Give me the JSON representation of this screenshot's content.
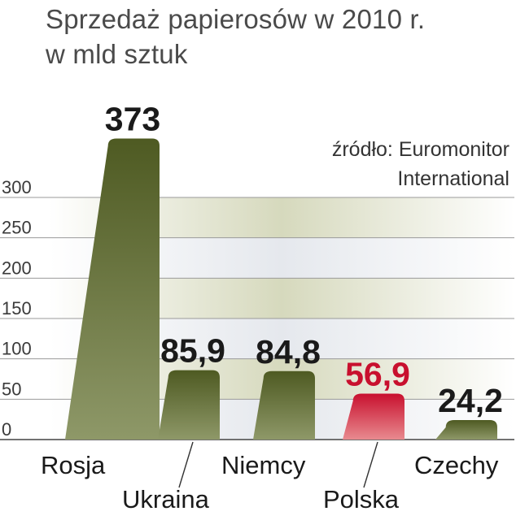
{
  "header": {
    "title_line1": "Sprzedaż papierosów w 2010 r.",
    "title_line2": "w mld sztuk"
  },
  "source": {
    "line1": "źródło: Euromonitor",
    "line2": "International"
  },
  "chart_data": {
    "type": "bar",
    "title": "Sprzedaż papierosów w 2010 r. w mld sztuk",
    "categories": [
      "Rosja",
      "Ukraina",
      "Niemcy",
      "Polska",
      "Czechy"
    ],
    "values": [
      373,
      85.9,
      84.8,
      56.9,
      24.2
    ],
    "value_labels": [
      "373",
      "85,9",
      "84,8",
      "56,9",
      "24,2"
    ],
    "highlight": "Polska",
    "yticks": [
      0,
      50,
      100,
      150,
      200,
      250,
      300
    ],
    "ylim": [
      0,
      300
    ],
    "grid": true,
    "colors": {
      "bar": "#5c6b2e",
      "bar_highlight": "#d3203a",
      "label": "#1a1a1a",
      "label_highlight": "#c8102e",
      "band_light": "#e6e8ec",
      "band_olive": "#d9dcc4"
    }
  }
}
